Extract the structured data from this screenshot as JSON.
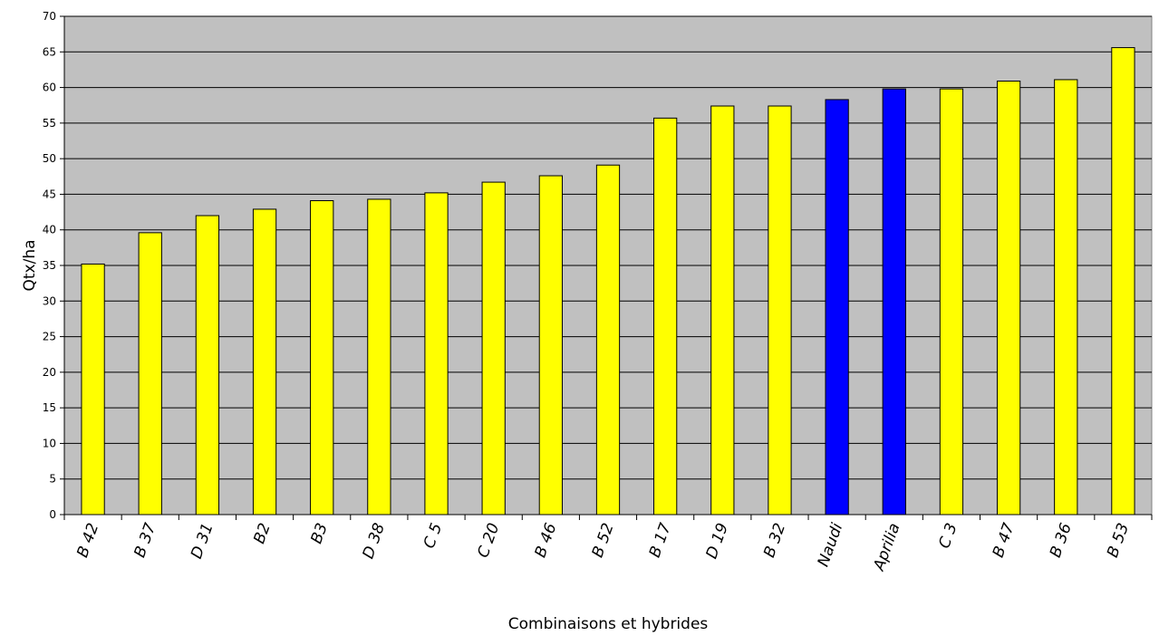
{
  "chart_data": {
    "type": "bar",
    "title": "",
    "xlabel": "Combinaisons et hybrides",
    "ylabel": "Qtx/ha",
    "ylim": [
      0,
      70
    ],
    "ytick_step": 5,
    "grid": true,
    "legend": "none",
    "categories": [
      "B 42",
      "B 37",
      "D 31",
      "B2",
      "B3",
      "D 38",
      "C 5",
      "C 20",
      "B 46",
      "B 52",
      "B 17",
      "D 19",
      "B 32",
      "Naudi",
      "Aprilia",
      "C 3",
      "B 47",
      "B 36",
      "B 53"
    ],
    "values": [
      35.2,
      39.6,
      42.0,
      42.9,
      44.1,
      44.3,
      45.2,
      46.7,
      47.6,
      49.1,
      55.7,
      57.4,
      57.4,
      58.3,
      59.8,
      59.8,
      60.9,
      61.1,
      65.6
    ],
    "highlight": [
      "Naudi",
      "Aprilia"
    ]
  },
  "colors": {
    "plot_background": "#c0c0c0",
    "bar_default": "#ffff00",
    "bar_highlight": "#0000ff",
    "bar_outline": "#000000",
    "gridline": "#000000"
  }
}
